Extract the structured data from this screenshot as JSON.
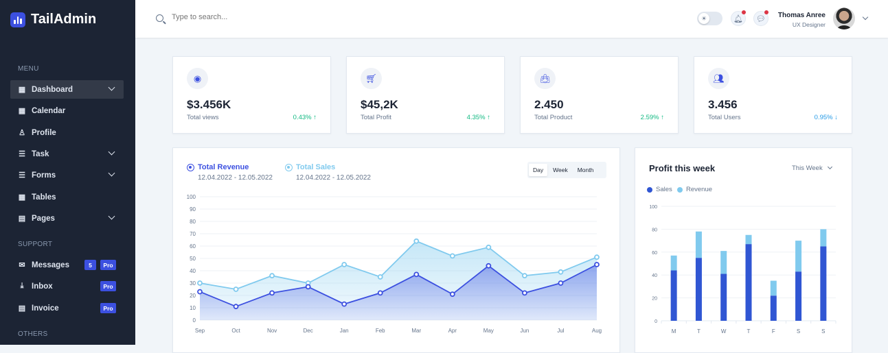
{
  "app": {
    "name": "TailAdmin"
  },
  "sidebar": {
    "sections": [
      {
        "label": "MENU"
      },
      {
        "label": "SUPPORT"
      },
      {
        "label": "OTHERS"
      }
    ],
    "items": [
      {
        "label": "Dashboard",
        "icon": "grid-icon",
        "chevron": true,
        "active": true
      },
      {
        "label": "Calendar",
        "icon": "calendar-icon"
      },
      {
        "label": "Profile",
        "icon": "user-icon"
      },
      {
        "label": "Task",
        "icon": "list-icon",
        "chevron": true
      },
      {
        "label": "Forms",
        "icon": "form-icon",
        "chevron": true
      },
      {
        "label": "Tables",
        "icon": "table-icon"
      },
      {
        "label": "Pages",
        "icon": "page-icon",
        "chevron": true
      },
      {
        "label": "Messages",
        "icon": "mail-icon",
        "count": "5",
        "pro": "Pro"
      },
      {
        "label": "Inbox",
        "icon": "inbox-icon",
        "pro": "Pro"
      },
      {
        "label": "Invoice",
        "icon": "invoice-icon",
        "pro": "Pro"
      }
    ]
  },
  "header": {
    "search_placeholder": "Type to search...",
    "user_name": "Thomas Anree",
    "user_role": "UX Designer"
  },
  "stats": [
    {
      "value": "$3.456K",
      "label": "Total views",
      "change": "0.43%",
      "dir": "↑",
      "icon": "eye-icon",
      "color": "#10b981"
    },
    {
      "value": "$45,2K",
      "label": "Total Profit",
      "change": "4.35%",
      "dir": "↑",
      "icon": "cart-icon",
      "color": "#10b981"
    },
    {
      "value": "2.450",
      "label": "Total Product",
      "change": "2.59%",
      "dir": "↑",
      "icon": "bag-icon",
      "color": "#10b981"
    },
    {
      "value": "3.456",
      "label": "Total Users",
      "change": "0.95%",
      "dir": "↓",
      "icon": "users-icon",
      "color": "#259ae6"
    }
  ],
  "revenue_chart": {
    "legend": [
      {
        "name": "Total Revenue",
        "range": "12.04.2022 - 12.05.2022",
        "color": "#3c50e0"
      },
      {
        "name": "Total Sales",
        "range": "12.04.2022 - 12.05.2022",
        "color": "#80caee"
      }
    ],
    "periods": [
      "Day",
      "Week",
      "Month"
    ],
    "selected_period": "Day"
  },
  "profit_chart": {
    "title": "Profit this week",
    "filter": "This Week"
  },
  "chart_data": [
    {
      "type": "area",
      "categories": [
        "Sep",
        "Oct",
        "Nov",
        "Dec",
        "Jan",
        "Feb",
        "Mar",
        "Apr",
        "May",
        "Jun",
        "Jul",
        "Aug"
      ],
      "series": [
        {
          "name": "Total Revenue",
          "values": [
            23,
            11,
            22,
            27,
            13,
            22,
            37,
            21,
            44,
            22,
            30,
            45
          ],
          "color": "#3c50e0"
        },
        {
          "name": "Total Sales",
          "values": [
            30,
            25,
            36,
            30,
            45,
            35,
            64,
            52,
            59,
            36,
            39,
            51
          ],
          "color": "#80caee"
        }
      ],
      "ylim": [
        0,
        100
      ],
      "yticks": [
        0,
        10,
        20,
        30,
        40,
        50,
        60,
        70,
        80,
        90,
        100
      ],
      "grid": true
    },
    {
      "type": "bar",
      "stacked": true,
      "categories": [
        "M",
        "T",
        "W",
        "T",
        "F",
        "S",
        "S"
      ],
      "series": [
        {
          "name": "Sales",
          "values": [
            44,
            55,
            41,
            67,
            22,
            43,
            65
          ],
          "color": "#3056d3"
        },
        {
          "name": "Revenue",
          "values": [
            13,
            23,
            20,
            8,
            13,
            27,
            15
          ],
          "color": "#80caee"
        }
      ],
      "ylim": [
        0,
        100
      ],
      "yticks": [
        0,
        20,
        40,
        60,
        80,
        100
      ],
      "grid": true,
      "legend": "top-left"
    }
  ]
}
